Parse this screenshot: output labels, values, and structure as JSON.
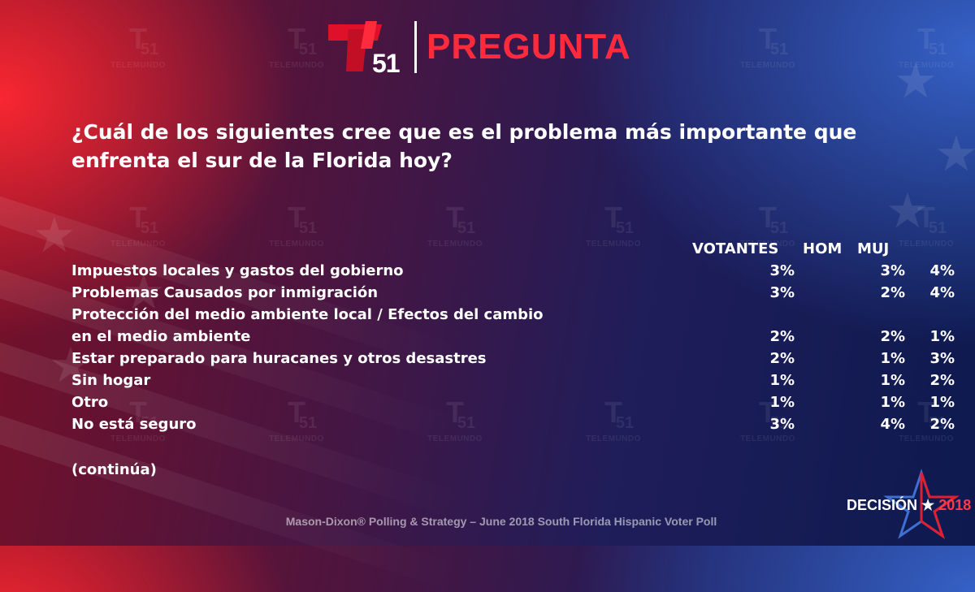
{
  "header": {
    "logo_number": "51",
    "title": "PREGUNTA"
  },
  "watermark": {
    "number": "51",
    "label": "TELEMUNDO"
  },
  "question": "¿Cuál de los siguientes cree que es el problema más importante que enfrenta el sur de la Florida hoy?",
  "table": {
    "headers": [
      "VOTANTES",
      "HOM",
      "MUJ"
    ],
    "rows": [
      {
        "label": "Impuestos locales y gastos del gobierno",
        "votantes": "3%",
        "hom": "3%",
        "muj": "4%"
      },
      {
        "label": "Problemas Causados por inmigración",
        "votantes": "3%",
        "hom": "2%",
        "muj": "4%"
      },
      {
        "label": "Protección del medio ambiente local / Efectos del cambio",
        "votantes": "",
        "hom": "",
        "muj": ""
      },
      {
        "label": "en el medio ambiente",
        "votantes": "2%",
        "hom": "2%",
        "muj": "1%"
      },
      {
        "label": "Estar preparado para huracanes y otros desastres",
        "votantes": "2%",
        "hom": "1%",
        "muj": "3%"
      },
      {
        "label": "Sin hogar",
        "votantes": "1%",
        "hom": "1%",
        "muj": "2%"
      },
      {
        "label": "Otro",
        "votantes": "1%",
        "hom": "1%",
        "muj": "1%"
      },
      {
        "label": "No está seguro",
        "votantes": "3%",
        "hom": "4%",
        "muj": "2%"
      }
    ]
  },
  "continued_label": "(continúa)",
  "footer": "Mason-Dixon® Polling & Strategy – June 2018 South Florida Hispanic Voter Poll",
  "decision_logo": {
    "word": "DECISIÓN",
    "star": "★",
    "year": "2018"
  },
  "colors": {
    "brand_red": "#ff2b3d",
    "text": "#ffffff"
  }
}
